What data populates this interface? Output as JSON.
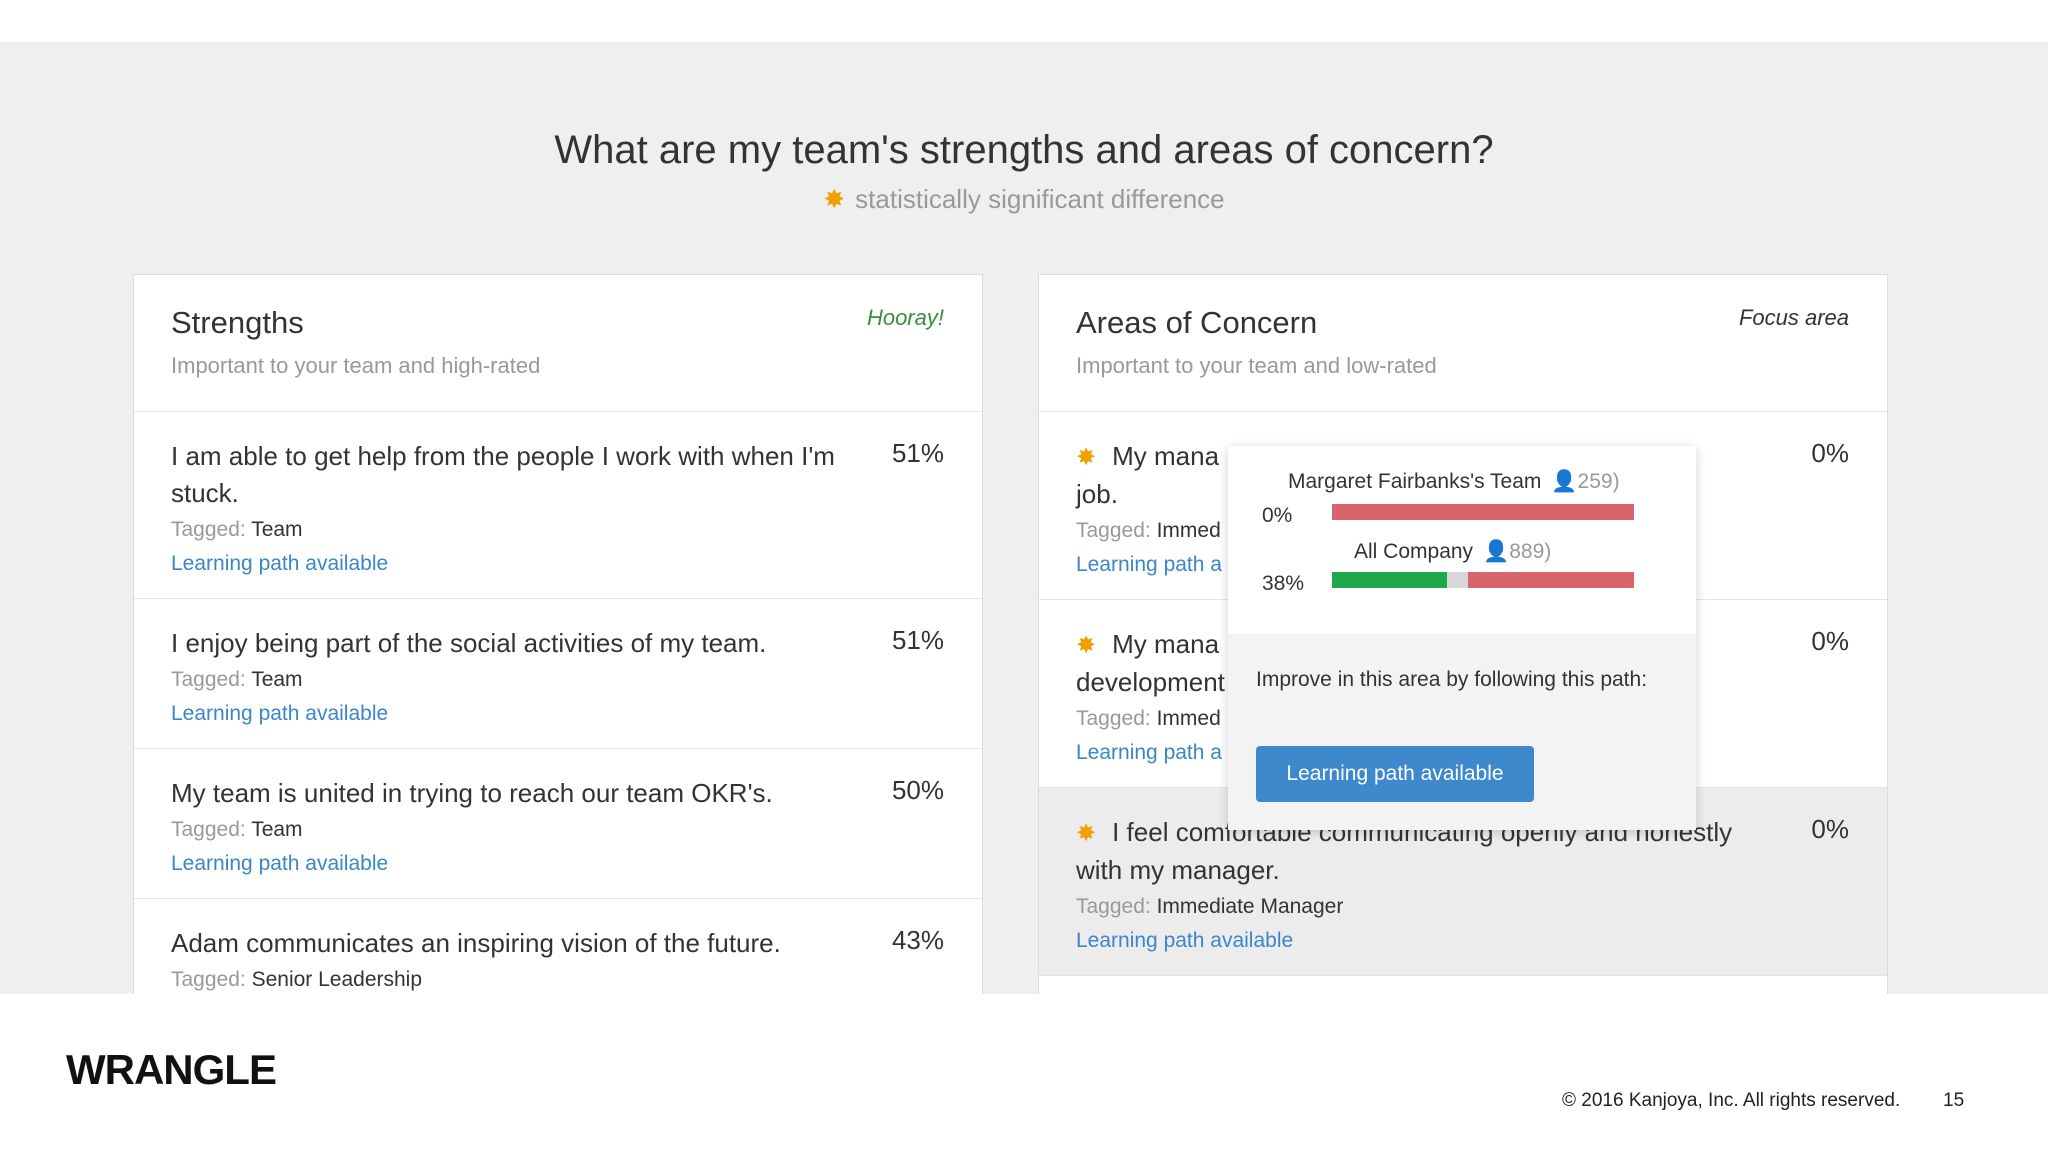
{
  "header": {
    "title": "What are my team's strengths and areas of concern?",
    "legend_icon": "star-icon",
    "legend_text": "statistically significant difference"
  },
  "strengths": {
    "title": "Strengths",
    "subtitle": "Important to your team and high-rated",
    "tag": "Hooray!",
    "items": [
      {
        "text": "I am able to get help from the people I work with when I'm stuck.",
        "percent": "51%",
        "tagged_label": "Tagged:",
        "tagged_value": "Team",
        "link": "Learning path available"
      },
      {
        "text": "I enjoy being part of the social activities of my team.",
        "percent": "51%",
        "tagged_label": "Tagged:",
        "tagged_value": "Team",
        "link": "Learning path available"
      },
      {
        "text": "My team is united in trying to reach our team OKR's.",
        "percent": "50%",
        "tagged_label": "Tagged:",
        "tagged_value": "Team",
        "link": "Learning path available"
      },
      {
        "text": "Adam communicates an inspiring vision of the future.",
        "percent": "43%",
        "tagged_label": "Tagged:",
        "tagged_value": "Senior Leadership"
      }
    ]
  },
  "concerns": {
    "title": "Areas of Concern",
    "subtitle": "Important to your team and low-rated",
    "tag": "Focus area",
    "items": [
      {
        "text": "My mana",
        "text2": "job.",
        "percent": "0%",
        "tagged_label": "Tagged:",
        "tagged_value": "Immed",
        "link": "Learning path a"
      },
      {
        "text": "My mana",
        "text2": "development",
        "percent": "0%",
        "tagged_label": "Tagged:",
        "tagged_value": "Immed",
        "link": "Learning path a"
      },
      {
        "text": "I feel comfortable communicating openly and honestly with my manager.",
        "percent": "0%",
        "tagged_label": "Tagged:",
        "tagged_value": "Immediate Manager",
        "link": "Learning path available"
      }
    ]
  },
  "popover": {
    "team_name": "Margaret Fairbanks's Team",
    "team_count": "259",
    "team_pct": "0%",
    "team_favorable": 0.0,
    "company_name": "All Company",
    "company_count": "889",
    "company_pct": "38%",
    "company_favorable": 0.38,
    "company_neutral": 0.07,
    "improve_text": "Improve in this area by following this path:",
    "button": "Learning path available",
    "colors": {
      "favorable": "#1fa84a",
      "neutral": "#d8d8d8",
      "unfavorable": "#d9646c"
    }
  },
  "footer": {
    "logo": "WRANGLE",
    "copyright": "© 2016 Kanjoya, Inc. All rights reserved.",
    "page": "15"
  }
}
